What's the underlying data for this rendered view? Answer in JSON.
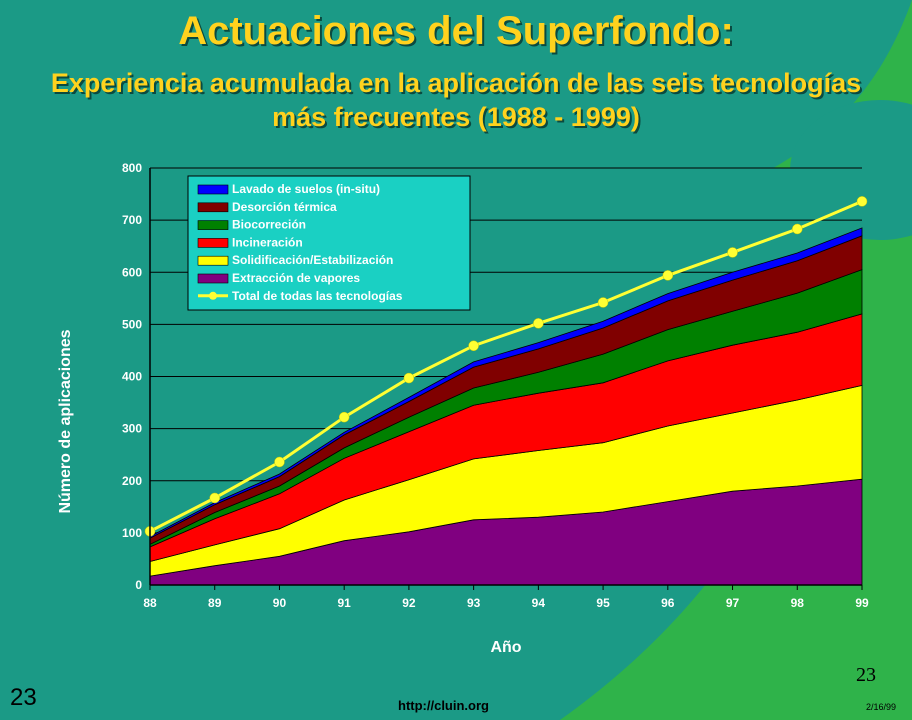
{
  "slide": {
    "title": "Actuaciones del Superfondo:",
    "subtitle": "Experiencia acumulada en la aplicación de las seis tecnologías más frecuentes (1988 - 1999)",
    "slide_number_left": "23",
    "slide_number_right": "23",
    "url": "http://cluin.org",
    "date": "2/16/99",
    "background_color": "#1b9a86",
    "accent_color": "#2fb34a",
    "title_color": "#ffd21e"
  },
  "chart_data": {
    "type": "area",
    "stacked": true,
    "title": "",
    "xlabel": "Año",
    "ylabel": "Número de aplicaciones",
    "x": [
      "88",
      "89",
      "90",
      "91",
      "92",
      "93",
      "94",
      "95",
      "96",
      "97",
      "98",
      "99"
    ],
    "ylim": [
      0,
      800
    ],
    "yticks": [
      0,
      100,
      200,
      300,
      400,
      500,
      600,
      700,
      800
    ],
    "grid": true,
    "legend_position": "top-left",
    "series": [
      {
        "name": "Extracción de vapores",
        "color": "#800080",
        "values": [
          17,
          37,
          55,
          85,
          102,
          125,
          130,
          140,
          160,
          180,
          190,
          203
        ]
      },
      {
        "name": "Solidificación/Estabilización",
        "color": "#ffff00",
        "values": [
          28,
          40,
          53,
          78,
          100,
          117,
          128,
          133,
          145,
          150,
          165,
          180
        ]
      },
      {
        "name": "Incineración",
        "color": "#ff0000",
        "values": [
          28,
          50,
          67,
          80,
          92,
          103,
          110,
          115,
          125,
          130,
          130,
          137
        ]
      },
      {
        "name": "Biocorreción",
        "color": "#008000",
        "values": [
          5,
          12,
          15,
          20,
          28,
          33,
          40,
          55,
          60,
          65,
          75,
          85
        ]
      },
      {
        "name": "Desorción térmica",
        "color": "#800000",
        "values": [
          12,
          15,
          18,
          25,
          30,
          40,
          45,
          50,
          55,
          60,
          62,
          65
        ]
      },
      {
        "name": "Lavado de suelos (in-situ)",
        "color": "#0000ff",
        "values": [
          3,
          4,
          5,
          5,
          8,
          10,
          12,
          13,
          14,
          15,
          15,
          15
        ]
      }
    ],
    "total": {
      "name": "Total de todas las tecnologías",
      "color": "#ffff33",
      "values": [
        103,
        167,
        236,
        322,
        397,
        459,
        502,
        542,
        594,
        638,
        683,
        736
      ]
    },
    "legend_order": [
      "Lavado de suelos (in-situ)",
      "Desorción térmica",
      "Biocorreción",
      "Incineración",
      "Solidificación/Estabilización",
      "Extracción de vapores",
      "Total de todas las tecnologías"
    ]
  }
}
